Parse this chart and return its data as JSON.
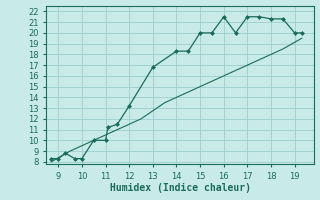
{
  "xlabel": "Humidex (Indice chaleur)",
  "bg_color": "#c8ebe8",
  "grid_color": "#9ecece",
  "line_color": "#1a6b5a",
  "marker_color": "#1a6b5a",
  "curve1_x": [
    8.7,
    9.0,
    9.3,
    9.7,
    10.0,
    10.5,
    11.0,
    11.1,
    11.5,
    12.0,
    13.0,
    14.0,
    14.5,
    15.0,
    15.5,
    16.0,
    16.5,
    17.0,
    17.5,
    18.0,
    18.5,
    19.0,
    19.3
  ],
  "curve1_y": [
    8.3,
    8.3,
    8.8,
    8.3,
    8.3,
    10.0,
    10.0,
    11.2,
    11.5,
    13.2,
    16.8,
    18.3,
    18.3,
    20.0,
    20.0,
    21.5,
    20.0,
    21.5,
    21.5,
    21.3,
    21.3,
    20.0,
    20.0
  ],
  "curve2_x": [
    8.7,
    9.5,
    10.5,
    11.5,
    12.5,
    13.5,
    14.5,
    15.5,
    16.5,
    17.5,
    18.5,
    19.3
  ],
  "curve2_y": [
    8.0,
    9.0,
    10.0,
    11.0,
    12.0,
    13.5,
    14.5,
    15.5,
    16.5,
    17.5,
    18.5,
    19.5
  ],
  "xlim": [
    8.5,
    19.8
  ],
  "ylim": [
    7.8,
    22.5
  ],
  "xticks": [
    9,
    10,
    11,
    12,
    13,
    14,
    15,
    16,
    17,
    18,
    19
  ],
  "yticks": [
    8,
    9,
    10,
    11,
    12,
    13,
    14,
    15,
    16,
    17,
    18,
    19,
    20,
    21,
    22
  ]
}
